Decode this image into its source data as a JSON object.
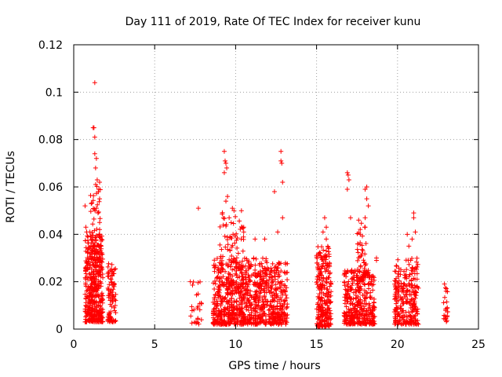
{
  "chart_data": {
    "type": "scatter",
    "title": "Day 111 of 2019, Rate Of TEC Index for receiver kunu",
    "xlabel": "GPS time / hours",
    "ylabel": "ROTI / TECUs",
    "xlim": [
      0,
      25
    ],
    "ylim": [
      0,
      0.12
    ],
    "xticks": [
      0,
      5,
      10,
      15,
      20,
      25
    ],
    "xtick_labels": [
      "0",
      "5",
      "10",
      "15",
      "20",
      "25"
    ],
    "yticks": [
      0,
      0.02,
      0.04,
      0.06,
      0.08,
      0.1,
      0.12
    ],
    "ytick_labels": [
      "0",
      "0.02",
      "0.04",
      "0.06",
      "0.08",
      "0.1",
      "0.12"
    ],
    "grid": true,
    "marker": "+",
    "color": "#ff0000",
    "series": [
      {
        "name": "ROTI",
        "clusters": [
          {
            "x_range": [
              0.7,
              1.8
            ],
            "y_range": [
              0.003,
              0.04
            ],
            "count": 420
          },
          {
            "x_range": [
              1.0,
              1.7
            ],
            "y_range": [
              0.02,
              0.065
            ],
            "count": 60
          },
          {
            "x_range": [
              2.1,
              2.6
            ],
            "y_range": [
              0.003,
              0.028
            ],
            "count": 90
          },
          {
            "x_range": [
              7.2,
              7.9
            ],
            "y_range": [
              0.002,
              0.02
            ],
            "count": 25
          },
          {
            "x_range": [
              8.6,
              11.0
            ],
            "y_range": [
              0.002,
              0.03
            ],
            "count": 520
          },
          {
            "x_range": [
              9.0,
              10.5
            ],
            "y_range": [
              0.025,
              0.05
            ],
            "count": 70
          },
          {
            "x_range": [
              11.1,
              12.0
            ],
            "y_range": [
              0.002,
              0.03
            ],
            "count": 200
          },
          {
            "x_range": [
              12.0,
              13.2
            ],
            "y_range": [
              0.002,
              0.028
            ],
            "count": 220
          },
          {
            "x_range": [
              15.0,
              15.9
            ],
            "y_range": [
              0.001,
              0.035
            ],
            "count": 260
          },
          {
            "x_range": [
              16.7,
              18.6
            ],
            "y_range": [
              0.002,
              0.025
            ],
            "count": 380
          },
          {
            "x_range": [
              17.5,
              18.1
            ],
            "y_range": [
              0.02,
              0.045
            ],
            "count": 50
          },
          {
            "x_range": [
              19.8,
              21.3
            ],
            "y_range": [
              0.002,
              0.03
            ],
            "count": 260
          },
          {
            "x_range": [
              22.8,
              23.1
            ],
            "y_range": [
              0.003,
              0.018
            ],
            "count": 22
          }
        ],
        "points": [
          [
            0.7,
            0.052
          ],
          [
            0.75,
            0.043
          ],
          [
            0.8,
            0.041
          ],
          [
            1.0,
            0.041
          ],
          [
            1.2,
            0.085
          ],
          [
            1.25,
            0.085
          ],
          [
            1.3,
            0.104
          ],
          [
            1.3,
            0.081
          ],
          [
            1.3,
            0.074
          ],
          [
            1.4,
            0.072
          ],
          [
            1.35,
            0.068
          ],
          [
            1.45,
            0.063
          ],
          [
            1.6,
            0.062
          ],
          [
            1.55,
            0.059
          ],
          [
            1.6,
            0.055
          ],
          [
            1.4,
            0.051
          ],
          [
            1.5,
            0.049
          ],
          [
            1.6,
            0.045
          ],
          [
            1.6,
            0.042
          ],
          [
            1.7,
            0.038
          ],
          [
            7.2,
            0.02
          ],
          [
            7.7,
            0.051
          ],
          [
            9.3,
            0.075
          ],
          [
            9.35,
            0.071
          ],
          [
            9.4,
            0.07
          ],
          [
            9.45,
            0.068
          ],
          [
            9.3,
            0.066
          ],
          [
            9.5,
            0.056
          ],
          [
            9.4,
            0.054
          ],
          [
            9.6,
            0.047
          ],
          [
            9.8,
            0.051
          ],
          [
            9.9,
            0.05
          ],
          [
            10.5,
            0.043
          ],
          [
            10.5,
            0.041
          ],
          [
            11.2,
            0.038
          ],
          [
            11.8,
            0.038
          ],
          [
            12.4,
            0.058
          ],
          [
            12.8,
            0.075
          ],
          [
            12.8,
            0.071
          ],
          [
            12.85,
            0.07
          ],
          [
            12.9,
            0.062
          ],
          [
            12.9,
            0.047
          ],
          [
            12.6,
            0.041
          ],
          [
            15.5,
            0.047
          ],
          [
            15.6,
            0.043
          ],
          [
            15.4,
            0.041
          ],
          [
            15.6,
            0.038
          ],
          [
            16.9,
            0.066
          ],
          [
            16.95,
            0.065
          ],
          [
            17.0,
            0.063
          ],
          [
            16.9,
            0.059
          ],
          [
            17.1,
            0.047
          ],
          [
            17.6,
            0.046
          ],
          [
            18.1,
            0.06
          ],
          [
            18.0,
            0.059
          ],
          [
            18.1,
            0.055
          ],
          [
            18.2,
            0.052
          ],
          [
            18.0,
            0.047
          ],
          [
            18.0,
            0.043
          ],
          [
            18.7,
            0.03
          ],
          [
            18.7,
            0.029
          ],
          [
            20.6,
            0.04
          ],
          [
            21.0,
            0.049
          ],
          [
            21.0,
            0.047
          ],
          [
            21.1,
            0.041
          ],
          [
            20.9,
            0.038
          ],
          [
            20.7,
            0.035
          ],
          [
            22.9,
            0.019
          ],
          [
            23.0,
            0.016
          ]
        ]
      }
    ]
  }
}
